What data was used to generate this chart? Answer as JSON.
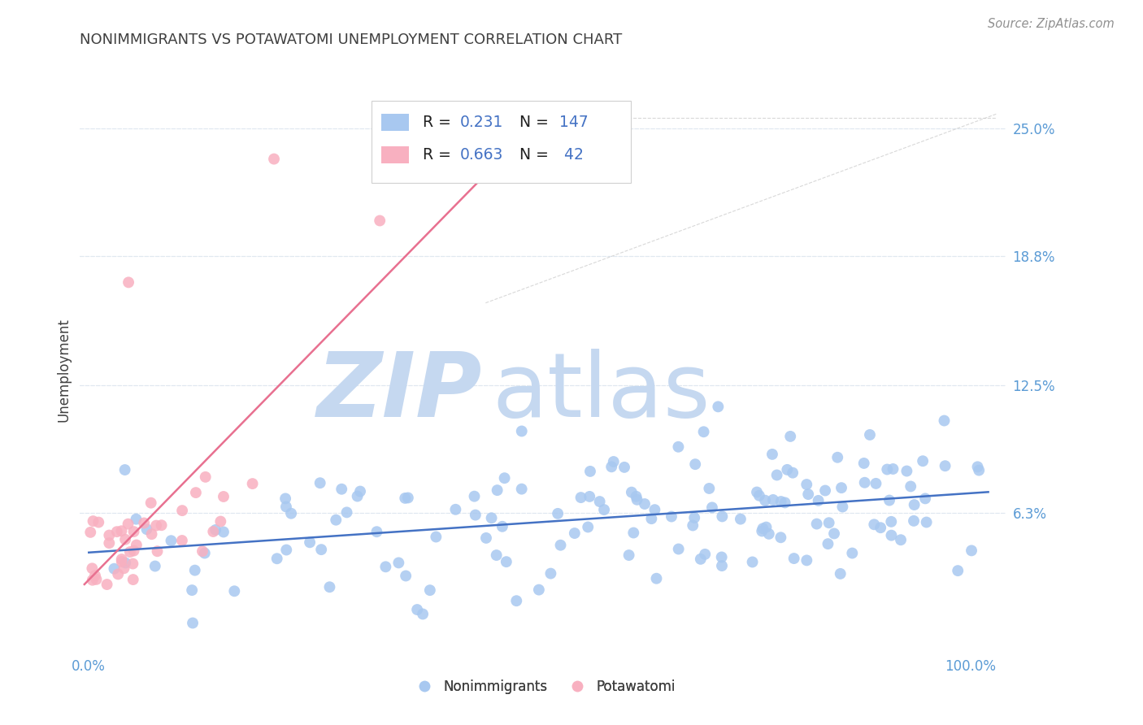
{
  "title": "NONIMMIGRANTS VS POTAWATOMI UNEMPLOYMENT CORRELATION CHART",
  "source": "Source: ZipAtlas.com",
  "ylabel": "Unemployment",
  "ytick_values": [
    0.063,
    0.125,
    0.188,
    0.25
  ],
  "ytick_labels": [
    "6.3%",
    "12.5%",
    "18.8%",
    "25.0%"
  ],
  "ylim": [
    -0.005,
    0.27
  ],
  "xlim": [
    -0.01,
    1.04
  ],
  "nonimm_R": 0.231,
  "nonimm_N": 147,
  "potawatomi_R": 0.663,
  "potawatomi_N": 42,
  "blue_scatter_color": "#A8C8F0",
  "pink_scatter_color": "#F8B0C0",
  "blue_line_color": "#4472C4",
  "pink_line_color": "#E87090",
  "dash_line_color": "#C8C8C8",
  "grid_color": "#E0E8F0",
  "title_color": "#404040",
  "axis_label_color": "#5B9BD5",
  "source_color": "#909090",
  "watermark_zip_color": "#C5D8F0",
  "watermark_atlas_color": "#C5D8F0",
  "background_color": "#FFFFFF",
  "legend_border_color": "#D0D0D0",
  "legend_rn_color": "#4472C4"
}
